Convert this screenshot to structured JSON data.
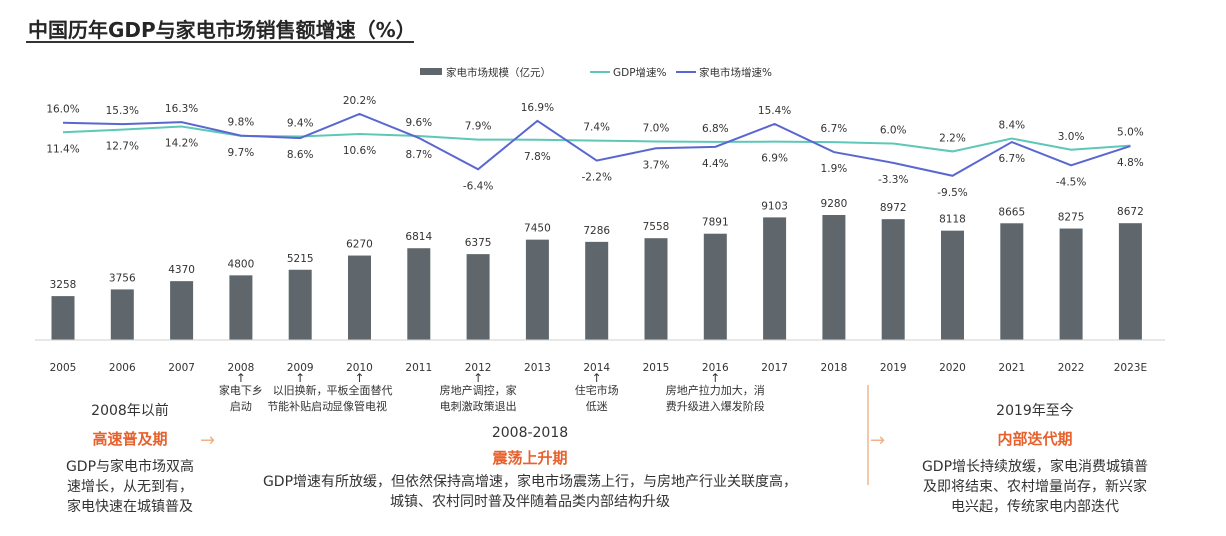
{
  "title": "中国历年GDP与家电市场销售额增速（%）",
  "colors": {
    "bar": "#5f676c",
    "gdp": "#5ec7b8",
    "appliance": "#5a67d1",
    "accent": "#e8602c"
  },
  "chart_data": {
    "type": "bar+line",
    "categories": [
      "2005",
      "2006",
      "2007",
      "2008",
      "2009",
      "2010",
      "2011",
      "2012",
      "2013",
      "2014",
      "2015",
      "2016",
      "2017",
      "2018",
      "2019",
      "2020",
      "2021",
      "2022",
      "2023E"
    ],
    "legend": [
      "家电市场规模（亿元）",
      "GDP增速%",
      "家电市场增速%"
    ],
    "series": [
      {
        "name": "家电市场规模（亿元）",
        "type": "bar",
        "values": [
          3258,
          3756,
          4370,
          4800,
          5215,
          6270,
          6814,
          6375,
          7450,
          7286,
          7558,
          7891,
          9103,
          9280,
          8972,
          8118,
          8665,
          8275,
          8672
        ]
      },
      {
        "name": "GDP增速%",
        "type": "line",
        "values": [
          11.4,
          12.7,
          14.2,
          9.7,
          9.4,
          10.6,
          9.6,
          7.9,
          7.8,
          7.4,
          7.0,
          6.8,
          6.9,
          6.7,
          6.0,
          2.2,
          8.4,
          3.0,
          5.0
        ]
      },
      {
        "name": "家电市场增速%",
        "type": "line",
        "values": [
          16.0,
          15.3,
          16.3,
          9.8,
          8.6,
          20.2,
          8.7,
          -6.4,
          16.9,
          -2.2,
          3.7,
          4.4,
          15.4,
          1.9,
          -3.3,
          -9.5,
          6.7,
          -4.5,
          4.8
        ]
      }
    ],
    "legend_position": "top-center",
    "grid": false
  },
  "annotations": [
    {
      "year": "2008",
      "text": [
        "家电下乡",
        "启动"
      ]
    },
    {
      "year": "2009",
      "text": [
        "以旧换新，",
        "节能补贴启动"
      ]
    },
    {
      "year": "2010",
      "text": [
        "平板全面替代",
        "显像管电视"
      ]
    },
    {
      "year": "2012",
      "text": [
        "房地产调控，家",
        "电刺激政策退出"
      ]
    },
    {
      "year": "2014",
      "text": [
        "住宅市场",
        "低迷"
      ]
    },
    {
      "year": "2016",
      "text": [
        "房地产拉力加大，消",
        "费升级进入爆发阶段"
      ]
    }
  ],
  "eras": [
    {
      "range": "2008年以前",
      "name": "高速普及期",
      "desc": [
        "GDP与家电市场双高",
        "速增长，从无到有，",
        "家电快速在城镇普及"
      ]
    },
    {
      "range": "2008-2018",
      "name": "震荡上升期",
      "desc": [
        "GDP增速有所放缓，但依然保持高增速，家电市场震荡上行，与房地产行业关联度高，",
        "城镇、农村同时普及伴随着品类内部结构升级"
      ]
    },
    {
      "range": "2019年至今",
      "name": "内部迭代期",
      "desc": [
        "GDP增长持续放缓，家电消费城镇普",
        "及即将结束、农村增量尚存，新兴家",
        "电兴起，传统家电内部迭代"
      ]
    }
  ]
}
